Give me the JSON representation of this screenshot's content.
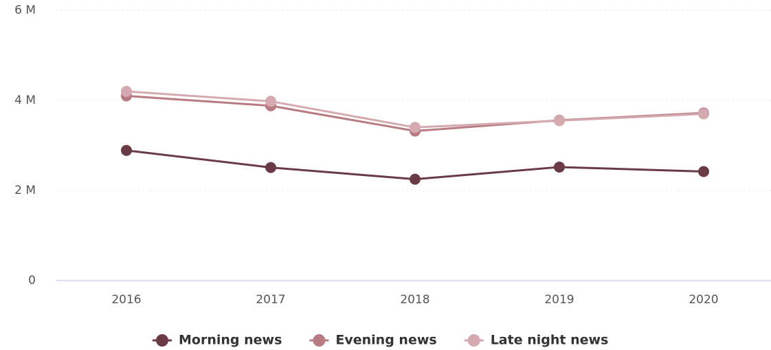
{
  "chart_data": {
    "type": "line",
    "categories": [
      "2016",
      "2017",
      "2018",
      "2019",
      "2020"
    ],
    "series": [
      {
        "name": "Morning news",
        "color": "#6b3a47",
        "values": [
          2890000,
          2510000,
          2250000,
          2520000,
          2420000
        ]
      },
      {
        "name": "Evening news",
        "color": "#b87b82",
        "values": [
          4100000,
          3880000,
          3320000,
          3560000,
          3720000
        ]
      },
      {
        "name": "Late night news",
        "color": "#d4a9b0",
        "values": [
          4200000,
          3980000,
          3400000,
          3550000,
          3700000
        ]
      }
    ],
    "ylim": [
      0,
      6000000
    ],
    "yticks": [
      0,
      {
        "value": 2000000,
        "label": "2 M"
      },
      {
        "value": 4000000,
        "label": "4 M"
      },
      {
        "value": 6000000,
        "label": "6 M"
      }
    ],
    "grid": true
  }
}
